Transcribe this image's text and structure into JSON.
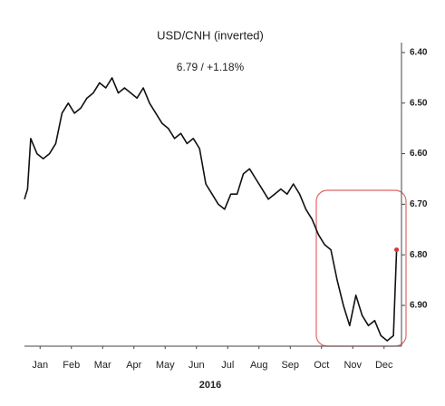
{
  "chart_data": {
    "type": "line",
    "title": "USD/CNH (inverted)",
    "annotation": "6.79  /  +1.18%",
    "xlabel": "2016",
    "x": [
      0,
      0.1,
      0.2,
      0.4,
      0.6,
      0.8,
      1.0,
      1.2,
      1.4,
      1.6,
      1.8,
      2.0,
      2.2,
      2.4,
      2.6,
      2.8,
      3.0,
      3.2,
      3.4,
      3.6,
      3.8,
      4.0,
      4.2,
      4.4,
      4.6,
      4.8,
      5.0,
      5.2,
      5.4,
      5.6,
      5.8,
      6.0,
      6.2,
      6.4,
      6.6,
      6.8,
      7.0,
      7.2,
      7.4,
      7.6,
      7.8,
      8.0,
      8.2,
      8.4,
      8.6,
      8.8,
      9.0,
      9.2,
      9.4,
      9.6,
      9.8,
      10.0,
      10.2,
      10.4,
      10.6,
      10.8,
      11.0,
      11.2,
      11.4,
      11.6,
      11.8,
      11.9
    ],
    "series": [
      {
        "name": "USD/CNH",
        "color": "#111111",
        "marker_color": "#e03030",
        "values": [
          6.69,
          6.67,
          6.57,
          6.6,
          6.61,
          6.6,
          6.58,
          6.52,
          6.5,
          6.52,
          6.51,
          6.49,
          6.48,
          6.46,
          6.47,
          6.45,
          6.48,
          6.47,
          6.48,
          6.49,
          6.47,
          6.5,
          6.52,
          6.54,
          6.55,
          6.57,
          6.56,
          6.58,
          6.57,
          6.59,
          6.66,
          6.68,
          6.7,
          6.71,
          6.68,
          6.68,
          6.64,
          6.63,
          6.65,
          6.67,
          6.69,
          6.68,
          6.67,
          6.68,
          6.66,
          6.68,
          6.71,
          6.73,
          6.76,
          6.78,
          6.79,
          6.85,
          6.9,
          6.94,
          6.88,
          6.92,
          6.94,
          6.93,
          6.96,
          6.97,
          6.96,
          6.79
        ]
      }
    ],
    "xlim": [
      0,
      12
    ],
    "xticks": [
      {
        "value": 0.5,
        "label": "Jan"
      },
      {
        "value": 1.5,
        "label": "Feb"
      },
      {
        "value": 2.5,
        "label": "Mar"
      },
      {
        "value": 3.5,
        "label": "Apr"
      },
      {
        "value": 4.5,
        "label": "May"
      },
      {
        "value": 5.5,
        "label": "Jun"
      },
      {
        "value": 6.5,
        "label": "Jul"
      },
      {
        "value": 7.5,
        "label": "Aug"
      },
      {
        "value": 8.5,
        "label": "Sep"
      },
      {
        "value": 9.5,
        "label": "Oct"
      },
      {
        "value": 10.5,
        "label": "Nov"
      },
      {
        "value": 11.5,
        "label": "Dec"
      }
    ],
    "ylim": [
      6.98,
      6.38
    ],
    "yticks": [
      {
        "value": 6.4,
        "label": "6.40"
      },
      {
        "value": 6.5,
        "label": "6.50"
      },
      {
        "value": 6.6,
        "label": "6.60"
      },
      {
        "value": 6.7,
        "label": "6.70"
      },
      {
        "value": 6.8,
        "label": "6.80"
      },
      {
        "value": 6.9,
        "label": "6.90"
      }
    ],
    "y_axis_side": "right"
  }
}
